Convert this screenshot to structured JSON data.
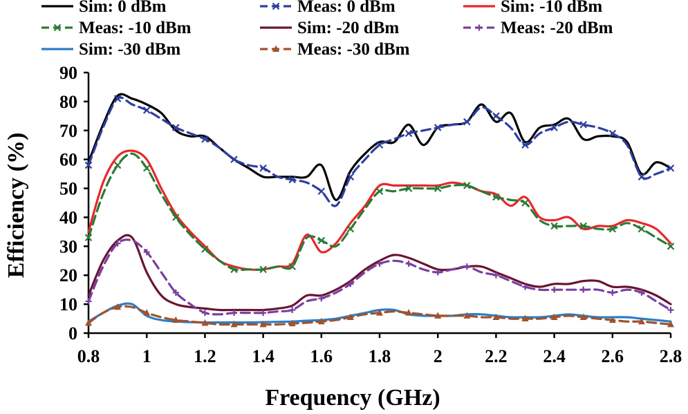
{
  "chart_data": {
    "type": "line",
    "title": "",
    "xlabel": "Frequency (GHz)",
    "ylabel": "Efficiency (%)",
    "xlim": [
      0.8,
      2.8
    ],
    "ylim": [
      0,
      90
    ],
    "xticks": [
      0.8,
      1,
      1.2,
      1.4,
      1.6,
      1.8,
      2,
      2.2,
      2.4,
      2.6,
      2.8
    ],
    "xtick_labels": [
      "0.8",
      "1",
      "1.2",
      "1.4",
      "1.6",
      "1.8",
      "2",
      "2.2",
      "2.4",
      "2.6",
      "2.8"
    ],
    "yticks": [
      0,
      10,
      20,
      30,
      40,
      50,
      60,
      70,
      80,
      90
    ],
    "ytick_labels": [
      "0",
      "10",
      "20",
      "30",
      "40",
      "50",
      "60",
      "70",
      "80",
      "90"
    ],
    "grid": false,
    "legend_position": "top",
    "series": [
      {
        "name": "Sim: 0 dBm",
        "color": "#000000",
        "dash": "solid",
        "marker": "none",
        "x": [
          0.8,
          0.85,
          0.9,
          0.95,
          1.0,
          1.05,
          1.1,
          1.15,
          1.2,
          1.25,
          1.3,
          1.35,
          1.4,
          1.45,
          1.5,
          1.55,
          1.6,
          1.65,
          1.7,
          1.75,
          1.8,
          1.85,
          1.9,
          1.95,
          2.0,
          2.05,
          2.1,
          2.15,
          2.2,
          2.25,
          2.3,
          2.35,
          2.4,
          2.45,
          2.5,
          2.55,
          2.6,
          2.65,
          2.7,
          2.75,
          2.8
        ],
        "y": [
          59,
          72,
          82,
          81,
          79,
          76,
          70,
          68,
          68,
          64,
          60,
          57,
          54,
          54,
          54,
          54,
          58,
          46,
          56,
          62,
          66,
          66,
          72,
          65,
          71,
          72,
          73,
          79,
          73,
          76,
          66,
          71,
          72,
          74,
          67,
          68,
          68,
          66,
          55,
          59,
          57
        ]
      },
      {
        "name": "Meas: 0 dBm",
        "color": "#2e3f9e",
        "dash": "dashed",
        "marker": "x",
        "x": [
          0.8,
          0.85,
          0.9,
          0.95,
          1.0,
          1.05,
          1.1,
          1.15,
          1.2,
          1.25,
          1.3,
          1.35,
          1.4,
          1.45,
          1.5,
          1.55,
          1.6,
          1.65,
          1.7,
          1.75,
          1.8,
          1.85,
          1.9,
          1.95,
          2.0,
          2.05,
          2.1,
          2.15,
          2.2,
          2.25,
          2.3,
          2.35,
          2.4,
          2.45,
          2.5,
          2.55,
          2.6,
          2.65,
          2.7,
          2.75,
          2.8
        ],
        "y": [
          58,
          71,
          81,
          79,
          77,
          74,
          71,
          69,
          67,
          64,
          60,
          58,
          57,
          54,
          53,
          52,
          49,
          44,
          54,
          60,
          65,
          67,
          69,
          70,
          71,
          72,
          73,
          78,
          75,
          71,
          65,
          69,
          71,
          73,
          72,
          71,
          69,
          65,
          54,
          55,
          57
        ]
      },
      {
        "name": "Sim: -10 dBm",
        "color": "#e8282b",
        "dash": "solid",
        "marker": "none",
        "x": [
          0.8,
          0.85,
          0.9,
          0.95,
          1.0,
          1.05,
          1.1,
          1.15,
          1.2,
          1.25,
          1.3,
          1.35,
          1.4,
          1.45,
          1.5,
          1.55,
          1.6,
          1.65,
          1.7,
          1.75,
          1.8,
          1.85,
          1.9,
          1.95,
          2.0,
          2.05,
          2.1,
          2.15,
          2.2,
          2.25,
          2.3,
          2.35,
          2.4,
          2.45,
          2.5,
          2.55,
          2.6,
          2.65,
          2.7,
          2.75,
          2.8
        ],
        "y": [
          35,
          52,
          61,
          63,
          60,
          50,
          41,
          35,
          30,
          25,
          23,
          22,
          22,
          23,
          24,
          34,
          28,
          31,
          38,
          44,
          51,
          51,
          51,
          51,
          51,
          52,
          51,
          49,
          48,
          44,
          47,
          40,
          39,
          40,
          36,
          37,
          37,
          39,
          38,
          36,
          31
        ]
      },
      {
        "name": "Meas: -10 dBm",
        "color": "#2a7a36",
        "dash": "dashed",
        "marker": "x",
        "x": [
          0.8,
          0.85,
          0.9,
          0.95,
          1.0,
          1.05,
          1.1,
          1.15,
          1.2,
          1.25,
          1.3,
          1.35,
          1.4,
          1.45,
          1.5,
          1.55,
          1.6,
          1.65,
          1.7,
          1.75,
          1.8,
          1.85,
          1.9,
          1.95,
          2.0,
          2.05,
          2.1,
          2.15,
          2.2,
          2.25,
          2.3,
          2.35,
          2.4,
          2.45,
          2.5,
          2.55,
          2.6,
          2.65,
          2.7,
          2.75,
          2.8
        ],
        "y": [
          33,
          48,
          58,
          62,
          57,
          48,
          40,
          34,
          29,
          25,
          22,
          22,
          22,
          23,
          23,
          33,
          32,
          30,
          36,
          43,
          49,
          49,
          50,
          50,
          50,
          51,
          51,
          49,
          47,
          46,
          45,
          39,
          37,
          37,
          37,
          36,
          36,
          38,
          36,
          33,
          30
        ]
      },
      {
        "name": "Sim: -20 dBm",
        "color": "#6a1530",
        "dash": "solid",
        "marker": "none",
        "x": [
          0.8,
          0.85,
          0.9,
          0.95,
          1.0,
          1.05,
          1.1,
          1.15,
          1.2,
          1.25,
          1.3,
          1.35,
          1.4,
          1.45,
          1.5,
          1.55,
          1.6,
          1.65,
          1.7,
          1.75,
          1.8,
          1.85,
          1.9,
          1.95,
          2.0,
          2.05,
          2.1,
          2.15,
          2.2,
          2.25,
          2.3,
          2.35,
          2.4,
          2.45,
          2.5,
          2.55,
          2.6,
          2.65,
          2.7,
          2.75,
          2.8
        ],
        "y": [
          13,
          25,
          32,
          33,
          21,
          13,
          10,
          9,
          8.5,
          8,
          8,
          8,
          8,
          8.5,
          9.5,
          13,
          13,
          15,
          18,
          22,
          25,
          27,
          26,
          24,
          22,
          22,
          23,
          23,
          21,
          19,
          17,
          16,
          17,
          17,
          18,
          18,
          16,
          16,
          15,
          13,
          10
        ]
      },
      {
        "name": "Meas: -20 dBm",
        "color": "#7a3fa0",
        "dash": "dashed",
        "marker": "+",
        "x": [
          0.8,
          0.85,
          0.9,
          0.95,
          1.0,
          1.05,
          1.1,
          1.15,
          1.2,
          1.25,
          1.3,
          1.35,
          1.4,
          1.45,
          1.5,
          1.55,
          1.6,
          1.65,
          1.7,
          1.75,
          1.8,
          1.85,
          1.9,
          1.95,
          2.0,
          2.05,
          2.1,
          2.15,
          2.2,
          2.25,
          2.3,
          2.35,
          2.4,
          2.45,
          2.5,
          2.55,
          2.6,
          2.65,
          2.7,
          2.75,
          2.8
        ],
        "y": [
          11,
          23,
          31,
          32,
          28,
          21,
          14,
          10,
          7,
          6.5,
          7,
          7,
          7,
          7.5,
          8,
          11,
          12,
          14,
          17,
          21,
          24,
          25,
          24,
          22,
          21,
          22,
          23,
          21,
          20,
          18,
          16,
          15,
          15,
          15,
          15,
          15,
          14,
          15,
          14,
          11,
          8
        ]
      },
      {
        "name": "Sim: -30 dBm",
        "color": "#2a7ec8",
        "dash": "solid",
        "marker": "none",
        "x": [
          0.8,
          0.85,
          0.9,
          0.95,
          1.0,
          1.05,
          1.1,
          1.15,
          1.2,
          1.25,
          1.3,
          1.35,
          1.4,
          1.45,
          1.5,
          1.55,
          1.6,
          1.65,
          1.7,
          1.75,
          1.8,
          1.85,
          1.9,
          1.95,
          2.0,
          2.05,
          2.1,
          2.15,
          2.2,
          2.25,
          2.3,
          2.35,
          2.4,
          2.45,
          2.5,
          2.55,
          2.6,
          2.65,
          2.7,
          2.75,
          2.8
        ],
        "y": [
          4,
          7,
          9.5,
          10,
          6,
          4.5,
          4,
          3.8,
          3.7,
          3.7,
          3.7,
          3.7,
          3.8,
          3.9,
          4,
          4.3,
          4.5,
          5,
          6,
          7,
          8,
          8,
          6.5,
          6,
          6,
          6,
          6.5,
          6.5,
          6,
          5.5,
          5.5,
          5.5,
          6,
          6.5,
          6,
          5.5,
          5.5,
          5.5,
          5,
          4.5,
          4
        ]
      },
      {
        "name": "Meas: -30 dBm",
        "color": "#a0522d",
        "dash": "dashed",
        "marker": "triangle",
        "x": [
          0.8,
          0.85,
          0.9,
          0.95,
          1.0,
          1.05,
          1.1,
          1.15,
          1.2,
          1.25,
          1.3,
          1.35,
          1.4,
          1.45,
          1.5,
          1.55,
          1.6,
          1.65,
          1.7,
          1.75,
          1.8,
          1.85,
          1.9,
          1.95,
          2.0,
          2.05,
          2.1,
          2.15,
          2.2,
          2.25,
          2.3,
          2.35,
          2.4,
          2.45,
          2.5,
          2.55,
          2.6,
          2.65,
          2.7,
          2.75,
          2.8
        ],
        "y": [
          3.5,
          7,
          9,
          9,
          7,
          5.5,
          4.5,
          4,
          3.5,
          3,
          3,
          3,
          3,
          3,
          3.3,
          3.6,
          4,
          4.5,
          5.5,
          6.5,
          7,
          7.5,
          7,
          6.5,
          6,
          6,
          6,
          5.5,
          5.5,
          5,
          5,
          5,
          5.5,
          6,
          5.5,
          5,
          4.5,
          4,
          4,
          3.5,
          3
        ]
      }
    ]
  }
}
